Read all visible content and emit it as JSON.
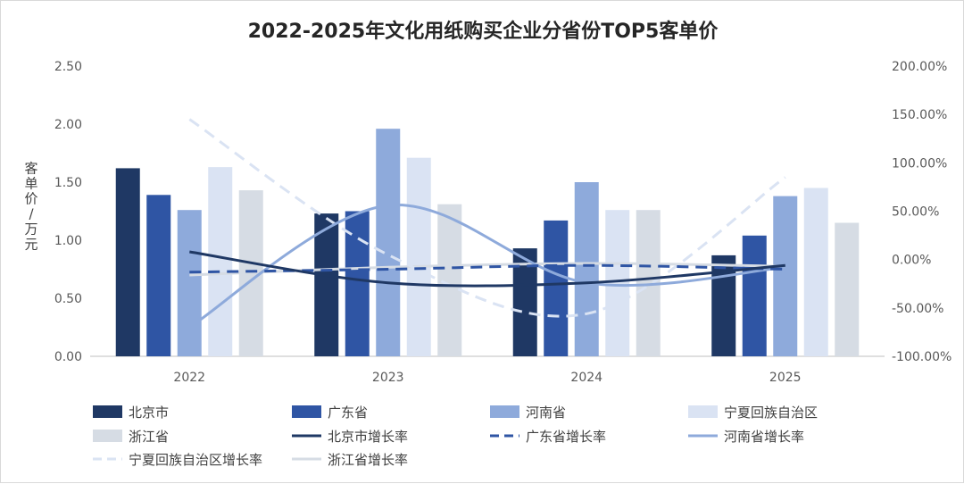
{
  "chart_data": {
    "type": "bar+line",
    "title": "2022-2025年文化用纸购买企业分省份TOP5客单价",
    "ylabel": "客单价/万元",
    "categories": [
      "2022",
      "2023",
      "2024",
      "2025"
    ],
    "ylim": [
      0,
      2.5
    ],
    "y2lim": [
      -1.0,
      2.0
    ],
    "y_ticks": [
      0,
      0.5,
      1.0,
      1.5,
      2.0,
      2.5
    ],
    "y_tick_labels": [
      "0.00",
      "0.50",
      "1.00",
      "1.50",
      "2.00",
      "2.50"
    ],
    "y2_ticks": [
      -1.0,
      -0.5,
      0,
      0.5,
      1.0,
      1.5,
      2.0
    ],
    "y2_tick_labels": [
      "-100.00%",
      "-50.00%",
      "0.00%",
      "50.00%",
      "100.00%",
      "150.00%",
      "200.00%"
    ],
    "series": [
      {
        "name": "北京市",
        "kind": "bar",
        "color": "#1f3864",
        "values": [
          1.62,
          1.23,
          0.93,
          0.87
        ]
      },
      {
        "name": "广东省",
        "kind": "bar",
        "color": "#2f55a4",
        "values": [
          1.39,
          1.25,
          1.17,
          1.04
        ]
      },
      {
        "name": "河南省",
        "kind": "bar",
        "color": "#8eaadb",
        "values": [
          1.26,
          1.96,
          1.5,
          1.38
        ]
      },
      {
        "name": "宁夏回族自治区",
        "kind": "bar",
        "color": "#dae3f3",
        "values": [
          1.63,
          1.71,
          1.26,
          1.45
        ]
      },
      {
        "name": "浙江省",
        "kind": "bar",
        "color": "#d6dce4",
        "values": [
          1.43,
          1.31,
          1.26,
          1.15
        ]
      },
      {
        "name": "北京市增长率",
        "kind": "line",
        "dash": "solid",
        "color": "#1f3864",
        "values": [
          0.08,
          -0.24,
          -0.24,
          -0.06
        ]
      },
      {
        "name": "广东省增长率",
        "kind": "line",
        "dash": "dash",
        "color": "#2f55a4",
        "values": [
          -0.13,
          -0.1,
          -0.06,
          -0.1
        ]
      },
      {
        "name": "河南省增长率",
        "kind": "line",
        "dash": "solid",
        "color": "#8eaadb",
        "values": [
          -0.7,
          0.56,
          -0.24,
          -0.08
        ]
      },
      {
        "name": "宁夏回族自治区增长率",
        "kind": "line",
        "dash": "dash",
        "color": "#dae3f3",
        "values": [
          1.45,
          0.05,
          -0.56,
          0.85
        ]
      },
      {
        "name": "浙江省增长率",
        "kind": "line",
        "dash": "solid",
        "color": "#d6dce4",
        "values": [
          -0.16,
          -0.08,
          -0.04,
          -0.07
        ]
      }
    ],
    "legend_position": "bottom",
    "grid": false
  }
}
